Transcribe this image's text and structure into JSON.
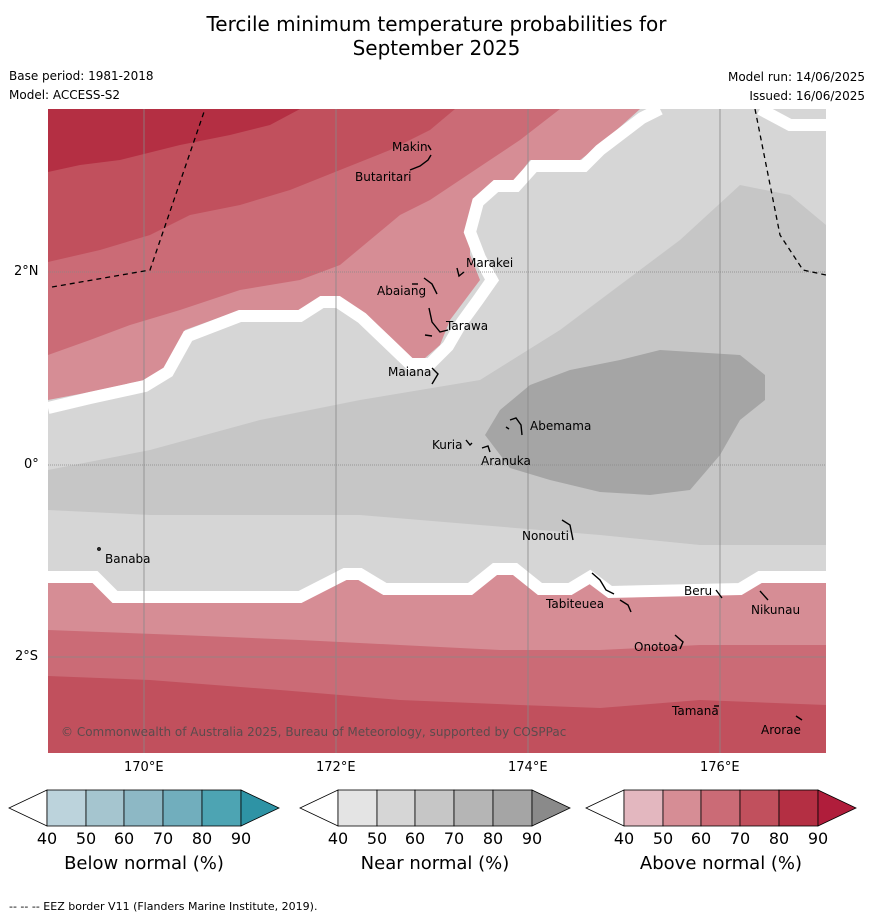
{
  "title_line1": "Tercile minimum temperature probabilities for",
  "title_line2": "September 2025",
  "base_period": "Base period: 1981-2018",
  "model": "Model: ACCESS-S2",
  "model_run": "Model run: 14/06/2025",
  "issued": "Issued: 16/06/2025",
  "copyright": "© Commonwealth of Australia 2025, Bureau of Meteorology, supported by COSPPac",
  "footnote": "--  --  -- EEZ border V11 (Flanders Marine Institute, 2019).",
  "lon_ticks": [
    "170°E",
    "172°E",
    "174°E",
    "176°E"
  ],
  "lat_ticks": [
    "2°N",
    "0°",
    "2°S"
  ],
  "places": [
    "Makin",
    "Butaritari",
    "Marakei",
    "Abaiang",
    "Tarawa",
    "Maiana",
    "Abemama",
    "Kuria",
    "Aranuka",
    "Nonouti",
    "Banaba",
    "Tabiteuea",
    "Beru",
    "Nikunau",
    "Onotoa",
    "Tamana",
    "Arorae"
  ],
  "colorbars": [
    {
      "label": "Below normal (%)",
      "ticks": [
        "40",
        "50",
        "60",
        "70",
        "80",
        "90"
      ],
      "colors": [
        "#ffffff",
        "#bcd3dc",
        "#a5c5cf",
        "#8db8c5",
        "#71aebd",
        "#4da4b3",
        "#2e93a5"
      ]
    },
    {
      "label": "Near normal (%)",
      "ticks": [
        "40",
        "50",
        "60",
        "70",
        "80",
        "90"
      ],
      "colors": [
        "#ffffff",
        "#e4e4e4",
        "#d6d6d6",
        "#c6c6c6",
        "#b5b5b5",
        "#a5a5a5",
        "#8a8a8a"
      ]
    },
    {
      "label": "Above normal (%)",
      "ticks": [
        "40",
        "50",
        "60",
        "70",
        "80",
        "90"
      ],
      "colors": [
        "#ffffff",
        "#e3b7bf",
        "#d68d95",
        "#cb6b76",
        "#c1505d",
        "#b42f43",
        "#b01d3b"
      ]
    }
  ],
  "colors": {
    "above_50": "#d68d95",
    "above_60": "#cb6b76",
    "above_70": "#c1505d",
    "above_80": "#b42f43",
    "near_40": "#d6d6d6",
    "near_50": "#c6c6c6",
    "near_60": "#a5a5a5"
  }
}
